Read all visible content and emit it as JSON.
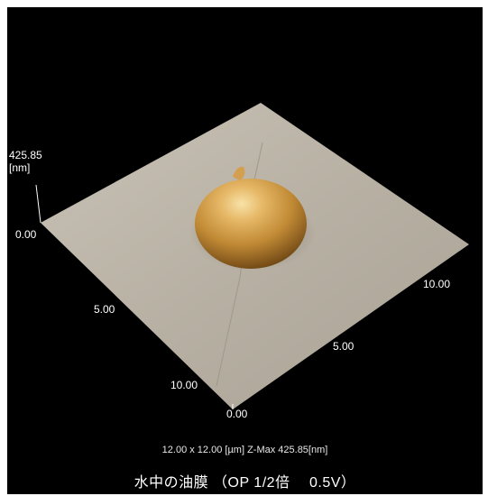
{
  "scale": {
    "z_max": "425.85",
    "z_unit": "[nm]",
    "z_min": "0.00"
  },
  "axis_x": {
    "ticks": [
      "0.00",
      "5.00",
      "10.00"
    ]
  },
  "axis_y": {
    "ticks": [
      "5.00",
      "10.00"
    ]
  },
  "caption": {
    "info": "12.00 x 12.00 [µm]  Z-Max 425.85[nm]",
    "title": "水中の油膜 （OP  1/2倍　 0.5V）"
  },
  "colors": {
    "background": "#000000",
    "surface": "#b9b2a5",
    "droplet": "#c8912e"
  }
}
